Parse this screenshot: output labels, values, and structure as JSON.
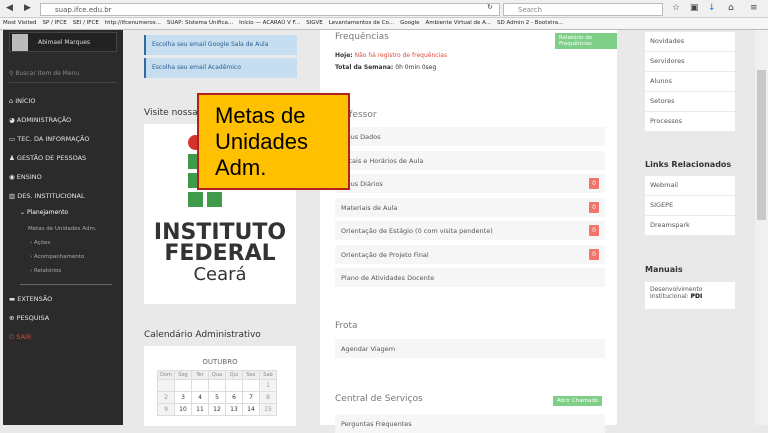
{
  "browser": {
    "url": "suap.ifce.edu.br",
    "search_placeholder": "Search",
    "bookmarks": [
      "Most Visited",
      "SP / IFCE",
      "SEI / IFCE",
      "http://ifcenumeros...",
      "SUAP: Sistema Unifica...",
      "Início — ACARAÚ V F...",
      "SIGVE",
      "Levantamentos de Co...",
      "Google",
      "Ambiente Virtual de A...",
      "SD Admin 2 - Bootstra..."
    ]
  },
  "sidebar": {
    "user": "Abimael Marques",
    "search_placeholder": "Buscar Item de Menu",
    "items": [
      "INÍCIO",
      "ADMINISTRAÇÃO",
      "TEC. DA INFORMAÇÃO",
      "GESTÃO DE PESSOAS",
      "ENSINO",
      "DES. INSTITUCIONAL"
    ],
    "submenu_title": "Planejamento",
    "submenu_active": "Metas de Unidades Adm.",
    "submenu_items": [
      "Ações",
      "Acompanhamento",
      "Relatórios"
    ],
    "bottom_items": [
      "EXTENSÃO",
      "PESQUISA"
    ],
    "logout": "SAIR"
  },
  "left": {
    "notes": [
      "Escolha seu email Google Sala de Aula",
      "Escolha seu email Acadêmico"
    ],
    "visit_title": "Visite nossa",
    "logo": {
      "line1": "INSTITUTO",
      "line2": "FEDERAL",
      "line3": "Ceará"
    },
    "calendar_title": "Calendário Administrativo",
    "month": "OUTUBRO",
    "weekdays": [
      "Dom",
      "Seg",
      "Ter",
      "Qua",
      "Qui",
      "Sex",
      "Sab"
    ],
    "weeks": [
      [
        "",
        "",
        "",
        "",
        "",
        "",
        "1"
      ],
      [
        "2",
        "3",
        "4",
        "5",
        "6",
        "7",
        "8"
      ],
      [
        "9",
        "10",
        "11",
        "12",
        "13",
        "14",
        "15"
      ]
    ]
  },
  "callout": "Metas de Unidades Adm.",
  "center": {
    "freq_title": "Frequências",
    "freq_button": "Relatório de Frequências",
    "today_label": "Hoje:",
    "today_value": "Não há registro de frequências",
    "week_label": "Total da Semana:",
    "week_value": "0h 0min 0seg",
    "prof_title": "Professor",
    "prof_items": [
      {
        "label": "Meus Dados"
      },
      {
        "label": "Locais e Horários de Aula"
      },
      {
        "label": "Meus Diários",
        "badge": "0"
      },
      {
        "label": "Materiais de Aula",
        "badge": "0"
      },
      {
        "label": "Orientação de Estágio (0 com visita pendente)",
        "badge": "0"
      },
      {
        "label": "Orientação de Projeto Final",
        "badge": "0"
      },
      {
        "label": "Plano de Atividades Docente"
      }
    ],
    "frota_title": "Frota",
    "frota_items": [
      "Agendar Viagem"
    ],
    "cs_title": "Central de Serviços",
    "cs_button": "Abrir Chamado",
    "cs_items": [
      "Perguntas Frequentes"
    ]
  },
  "right": {
    "search_items": [
      "Novidades",
      "Servidores",
      "Alunos",
      "Setores",
      "Processos"
    ],
    "links_title": "Links Relacionados",
    "links": [
      "Webmail",
      "SIGEPE",
      "Dreamspark"
    ],
    "manuals_title": "Manuais",
    "manual_text": "Desenvolvimento Institucional:",
    "manual_bold": "PDI"
  }
}
